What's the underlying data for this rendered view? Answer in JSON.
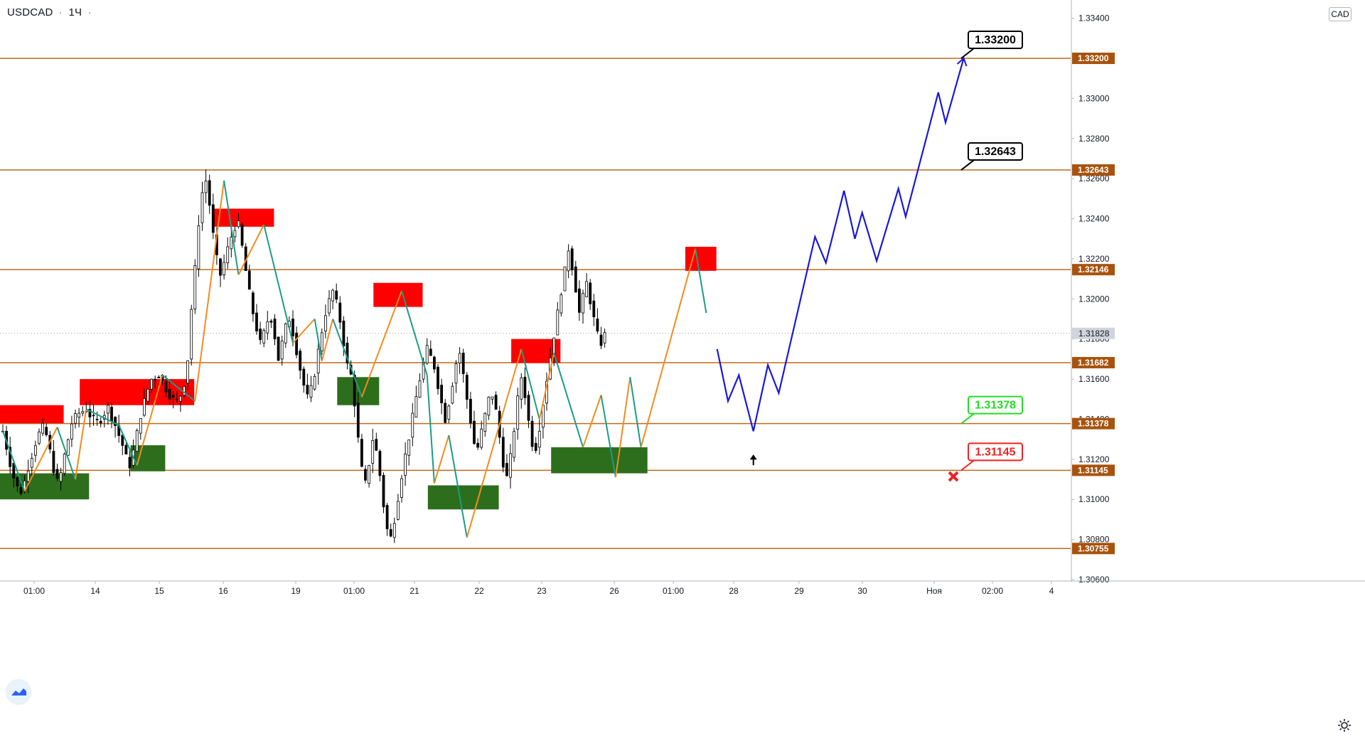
{
  "header": {
    "symbol": "USDCAD",
    "interval": "1Ч",
    "extra": "·"
  },
  "currency_label": "CAD",
  "icons": {
    "logo": "tradingview-logo-icon",
    "settings": "gear-icon",
    "target": "close-x-icon",
    "entry": "arrow-up-icon"
  },
  "colors": {
    "level_line": "#c46a1a",
    "level_badge_bg": "#a8530d",
    "forecast": "#1a19d6",
    "zigzag_up": "#f28c1c",
    "zigzag_down": "#1b9c86",
    "supply": "#ff0000",
    "demand": "#2d6e1c",
    "candle": "#000000",
    "current_price_badge": "#d1d4dc",
    "tp_green": "#22dd22",
    "sl_red": "#ee2222"
  },
  "chart_data": {
    "type": "candlestick",
    "title": "USDCAD · 1Ч",
    "ylim": [
      1.306,
      1.3342
    ],
    "y_ticks": [
      "1.33400",
      "1.33000",
      "1.32800",
      "1.32600",
      "1.32400",
      "1.32200",
      "1.32000",
      "1.31800",
      "1.31600",
      "1.31400",
      "1.31200",
      "1.31000",
      "1.30800",
      "1.30600"
    ],
    "x_ticks": [
      "01:00",
      "14",
      "15",
      "16",
      "19",
      "01:00",
      "21",
      "22",
      "23",
      "26",
      "01:00",
      "28",
      "29",
      "30",
      "Ноя",
      "02:00",
      "4"
    ],
    "current_price": "1.31828",
    "levels": [
      "1.33200",
      "1.32643",
      "1.32146",
      "1.31682",
      "1.31378",
      "1.31145",
      "1.30755"
    ],
    "callouts": [
      {
        "label": "1.33200",
        "kind": "target"
      },
      {
        "label": "1.32643",
        "kind": "target"
      },
      {
        "label": "1.31378",
        "kind": "take-profit"
      },
      {
        "label": "1.31145",
        "kind": "stop-loss"
      }
    ],
    "supply_zones": [
      {
        "from_idx": 0,
        "to_idx": 16,
        "low": 1.3138,
        "high": 1.3147
      },
      {
        "from_idx": 22,
        "to_idx": 52,
        "low": 1.3147,
        "high": 1.316
      },
      {
        "from_idx": 59,
        "to_idx": 74,
        "low": 1.3236,
        "high": 1.3245
      },
      {
        "from_idx": 103,
        "to_idx": 115,
        "low": 1.3196,
        "high": 1.3208
      },
      {
        "from_idx": 141,
        "to_idx": 153,
        "low": 1.3168,
        "high": 1.318
      },
      {
        "from_idx": 189,
        "to_idx": 196,
        "low": 1.3214,
        "high": 1.3226
      }
    ],
    "demand_zones": [
      {
        "from_idx": 0,
        "to_idx": 23,
        "low": 1.31,
        "high": 1.3113
      },
      {
        "from_idx": 36,
        "to_idx": 44,
        "low": 1.3114,
        "high": 1.3127
      },
      {
        "from_idx": 93,
        "to_idx": 103,
        "low": 1.3147,
        "high": 1.3161
      },
      {
        "from_idx": 118,
        "to_idx": 136,
        "low": 1.3095,
        "high": 1.3107
      },
      {
        "from_idx": 152,
        "to_idx": 177,
        "low": 1.3113,
        "high": 1.3126
      }
    ],
    "zigzag": [
      {
        "idx": 0,
        "price": 1.3134
      },
      {
        "idx": 6,
        "price": 1.3104
      },
      {
        "idx": 15,
        "price": 1.3136
      },
      {
        "idx": 20,
        "price": 1.311
      },
      {
        "idx": 23,
        "price": 1.3145
      },
      {
        "idx": 32,
        "price": 1.3137
      },
      {
        "idx": 37,
        "price": 1.3117
      },
      {
        "idx": 44,
        "price": 1.3162
      },
      {
        "idx": 53,
        "price": 1.3149
      },
      {
        "idx": 61,
        "price": 1.3259
      },
      {
        "idx": 65,
        "price": 1.3212
      },
      {
        "idx": 72,
        "price": 1.3237
      },
      {
        "idx": 80,
        "price": 1.3178
      },
      {
        "idx": 86,
        "price": 1.319
      },
      {
        "idx": 88,
        "price": 1.3169
      },
      {
        "idx": 91,
        "price": 1.319
      },
      {
        "idx": 99,
        "price": 1.3151
      },
      {
        "idx": 110,
        "price": 1.3204
      },
      {
        "idx": 117,
        "price": 1.3162
      },
      {
        "idx": 119,
        "price": 1.3108
      },
      {
        "idx": 123,
        "price": 1.3132
      },
      {
        "idx": 128,
        "price": 1.3081
      },
      {
        "idx": 143,
        "price": 1.3175
      },
      {
        "idx": 148,
        "price": 1.314
      },
      {
        "idx": 152,
        "price": 1.3173
      },
      {
        "idx": 160,
        "price": 1.3126
      },
      {
        "idx": 165,
        "price": 1.3152
      },
      {
        "idx": 169,
        "price": 1.3111
      },
      {
        "idx": 173,
        "price": 1.3161
      },
      {
        "idx": 176,
        "price": 1.3126
      },
      {
        "idx": 191,
        "price": 1.3225
      },
      {
        "idx": 194,
        "price": 1.3193
      }
    ],
    "candles_start_x_price": [
      1.3134,
      1.3126,
      1.3118,
      1.3111,
      1.3106,
      1.3104,
      1.3109,
      1.3116,
      1.3122,
      1.3128,
      1.3133,
      1.3136,
      1.3132,
      1.3124,
      1.3115,
      1.3109,
      1.3113,
      1.3122,
      1.313,
      1.3138,
      1.3141,
      1.3143,
      1.3144,
      1.3145,
      1.3142,
      1.314,
      1.3139,
      1.314,
      1.3143,
      1.3146,
      1.3141,
      1.3137,
      1.3132,
      1.3127,
      1.3121,
      1.3117,
      1.3124,
      1.3133,
      1.3142,
      1.3149,
      1.3155,
      1.316,
      1.3161,
      1.3162,
      1.3159,
      1.3155,
      1.3152,
      1.315,
      1.3149,
      1.3152,
      1.3158,
      1.317,
      1.3195,
      1.3215,
      1.3238,
      1.3253,
      1.3259,
      1.3247,
      1.3232,
      1.322,
      1.3212,
      1.3218,
      1.3225,
      1.3231,
      1.3236,
      1.3237,
      1.3226,
      1.3214,
      1.3203,
      1.3193,
      1.3185,
      1.3178,
      1.3183,
      1.3189,
      1.319,
      1.3181,
      1.317,
      1.3178,
      1.3186,
      1.319,
      1.3183,
      1.3174,
      1.3165,
      1.3157,
      1.3151,
      1.3155,
      1.3163,
      1.3174,
      1.3184,
      1.3193,
      1.3199,
      1.3204,
      1.3198,
      1.3189,
      1.3178,
      1.3167,
      1.3162,
      1.3148,
      1.313,
      1.3115,
      1.3108,
      1.3118,
      1.313,
      1.3124,
      1.3112,
      1.3097,
      1.3085,
      1.3081,
      1.309,
      1.3101,
      1.3112,
      1.3122,
      1.3131,
      1.3141,
      1.3151,
      1.316,
      1.3168,
      1.3175,
      1.3171,
      1.3166,
      1.3157,
      1.3148,
      1.314,
      1.3148,
      1.3158,
      1.3168,
      1.3173,
      1.3162,
      1.315,
      1.3139,
      1.3128,
      1.3126,
      1.3134,
      1.3142,
      1.315,
      1.3152,
      1.3144,
      1.3131,
      1.3118,
      1.3111,
      1.3121,
      1.3135,
      1.315,
      1.3161,
      1.3152,
      1.3139,
      1.3128,
      1.3126,
      1.3136,
      1.3148,
      1.316,
      1.3171,
      1.3182,
      1.3193,
      1.3204,
      1.3214,
      1.3225,
      1.3216,
      1.3205,
      1.3193,
      1.3201,
      1.3208,
      1.3199,
      1.319,
      1.3182,
      1.3178,
      1.3182
    ]
  }
}
